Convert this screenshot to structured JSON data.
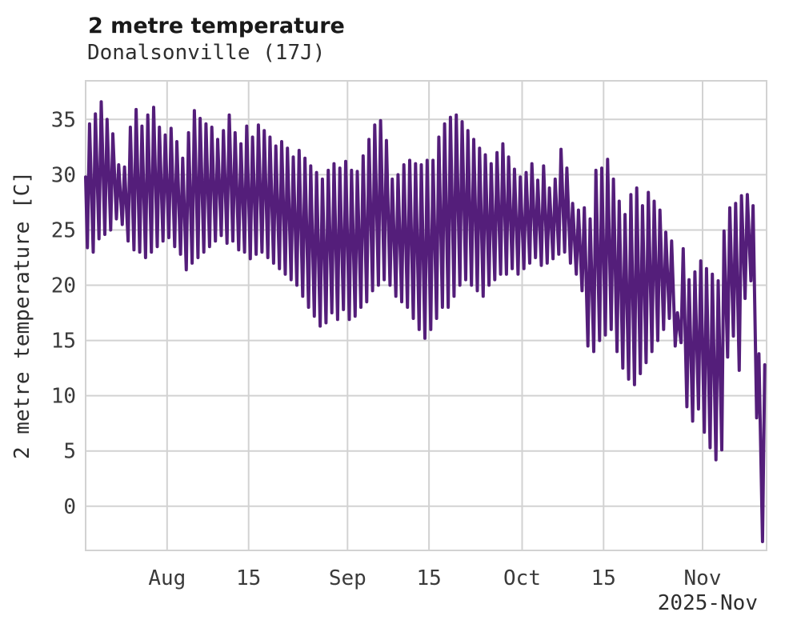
{
  "header": {
    "title": "2 metre temperature",
    "subtitle": "Donalsonville (17J)"
  },
  "chart_data": {
    "type": "line",
    "title": "2 metre temperature",
    "subtitle": "Donalsonville (17J)",
    "xlabel": "",
    "ylabel": "2 metre temperature [C]",
    "x_axis_corner_note": "2025-Nov",
    "legend": "none",
    "grid": true,
    "colors": {
      "line": "#541e7a",
      "grid": "#d2d2d2",
      "tick_text": "#3a3a3a",
      "title_text": "#191919",
      "background": "#ffffff"
    },
    "ylim": [
      -4,
      38.5
    ],
    "yticks": [
      0,
      5,
      10,
      15,
      20,
      25,
      30,
      35
    ],
    "x_domain_days": [
      0,
      117
    ],
    "x_start_date": "2025-07-18",
    "x_end_date": "2025-11-12",
    "xticks": [
      {
        "label": "Aug",
        "day": 14
      },
      {
        "label": "15",
        "day": 28
      },
      {
        "label": "Sep",
        "day": 45
      },
      {
        "label": "15",
        "day": 59
      },
      {
        "label": "Oct",
        "day": 75
      },
      {
        "label": "15",
        "day": 89
      },
      {
        "label": "Nov",
        "day": 106
      }
    ],
    "series": [
      {
        "name": "2 metre temperature",
        "units": "C",
        "start_value": 29.8,
        "min_offset_day_fraction": 0.3,
        "max_offset_day_fraction": 0.68,
        "daily_min": [
          23.4,
          23.0,
          24.2,
          24.6,
          25.0,
          26.0,
          25.5,
          24.0,
          23.2,
          23.0,
          22.5,
          23.0,
          23.5,
          24.0,
          24.3,
          23.5,
          22.8,
          21.4,
          22.0,
          22.5,
          23.0,
          23.5,
          24.0,
          24.5,
          23.8,
          24.0,
          23.2,
          23.0,
          22.4,
          22.8,
          23.0,
          22.5,
          22.0,
          21.5,
          21.0,
          20.5,
          20.0,
          19.0,
          18.0,
          17.2,
          16.3,
          16.6,
          17.5,
          16.9,
          17.8,
          16.9,
          17.2,
          18.0,
          18.5,
          19.5,
          20.0,
          20.5,
          20.0,
          19.0,
          18.5,
          18.0,
          17.0,
          16.0,
          15.2,
          16.0,
          17.0,
          18.0,
          18.0,
          19.0,
          20.0,
          20.5,
          20.0,
          19.5,
          19.0,
          20.0,
          20.5,
          21.0,
          21.0,
          21.5,
          21.0,
          21.5,
          22.0,
          22.5,
          21.8,
          22.0,
          22.4,
          22.8,
          23.0,
          22.0,
          21.0,
          19.5,
          14.5,
          14.0,
          15.0,
          15.5,
          16.0,
          14.0,
          12.5,
          11.5,
          11.0,
          12.0,
          13.0,
          14.0,
          15.0,
          16.0,
          17.0,
          14.5,
          14.8,
          9.0,
          7.7,
          8.8,
          6.7,
          5.3,
          4.2,
          5.1,
          13.5,
          15.4,
          12.3,
          18.8,
          20.4,
          8.0,
          -3.2
        ],
        "daily_max": [
          34.6,
          35.5,
          36.6,
          35.0,
          33.7,
          30.9,
          30.7,
          34.3,
          35.9,
          34.4,
          35.4,
          36.1,
          34.3,
          33.6,
          34.2,
          33.0,
          31.5,
          33.8,
          35.8,
          35.1,
          34.6,
          34.3,
          33.2,
          34.0,
          35.4,
          33.8,
          32.8,
          34.4,
          33.4,
          34.5,
          34.0,
          33.4,
          32.6,
          33.0,
          32.4,
          31.6,
          32.2,
          31.5,
          30.8,
          30.2,
          29.6,
          30.4,
          31.0,
          30.6,
          31.2,
          30.4,
          30.3,
          31.7,
          33.2,
          34.5,
          34.9,
          33.1,
          29.6,
          30.0,
          30.9,
          31.3,
          31.0,
          30.9,
          31.3,
          31.3,
          33.4,
          34.6,
          35.2,
          35.4,
          34.8,
          34.0,
          33.2,
          32.4,
          31.8,
          31.0,
          32.0,
          32.8,
          31.6,
          30.5,
          29.8,
          30.2,
          31.0,
          29.5,
          30.8,
          28.8,
          29.6,
          32.3,
          30.6,
          27.4,
          26.8,
          27.0,
          26.0,
          30.4,
          30.6,
          31.4,
          29.6,
          27.6,
          26.4,
          28.2,
          28.8,
          27.2,
          28.4,
          27.6,
          26.8,
          24.8,
          24.0,
          17.5,
          23.3,
          20.5,
          21.2,
          22.2,
          21.5,
          21.0,
          20.4,
          24.9,
          27.0,
          27.4,
          28.1,
          28.2,
          27.2,
          13.8,
          12.8
        ]
      }
    ]
  }
}
